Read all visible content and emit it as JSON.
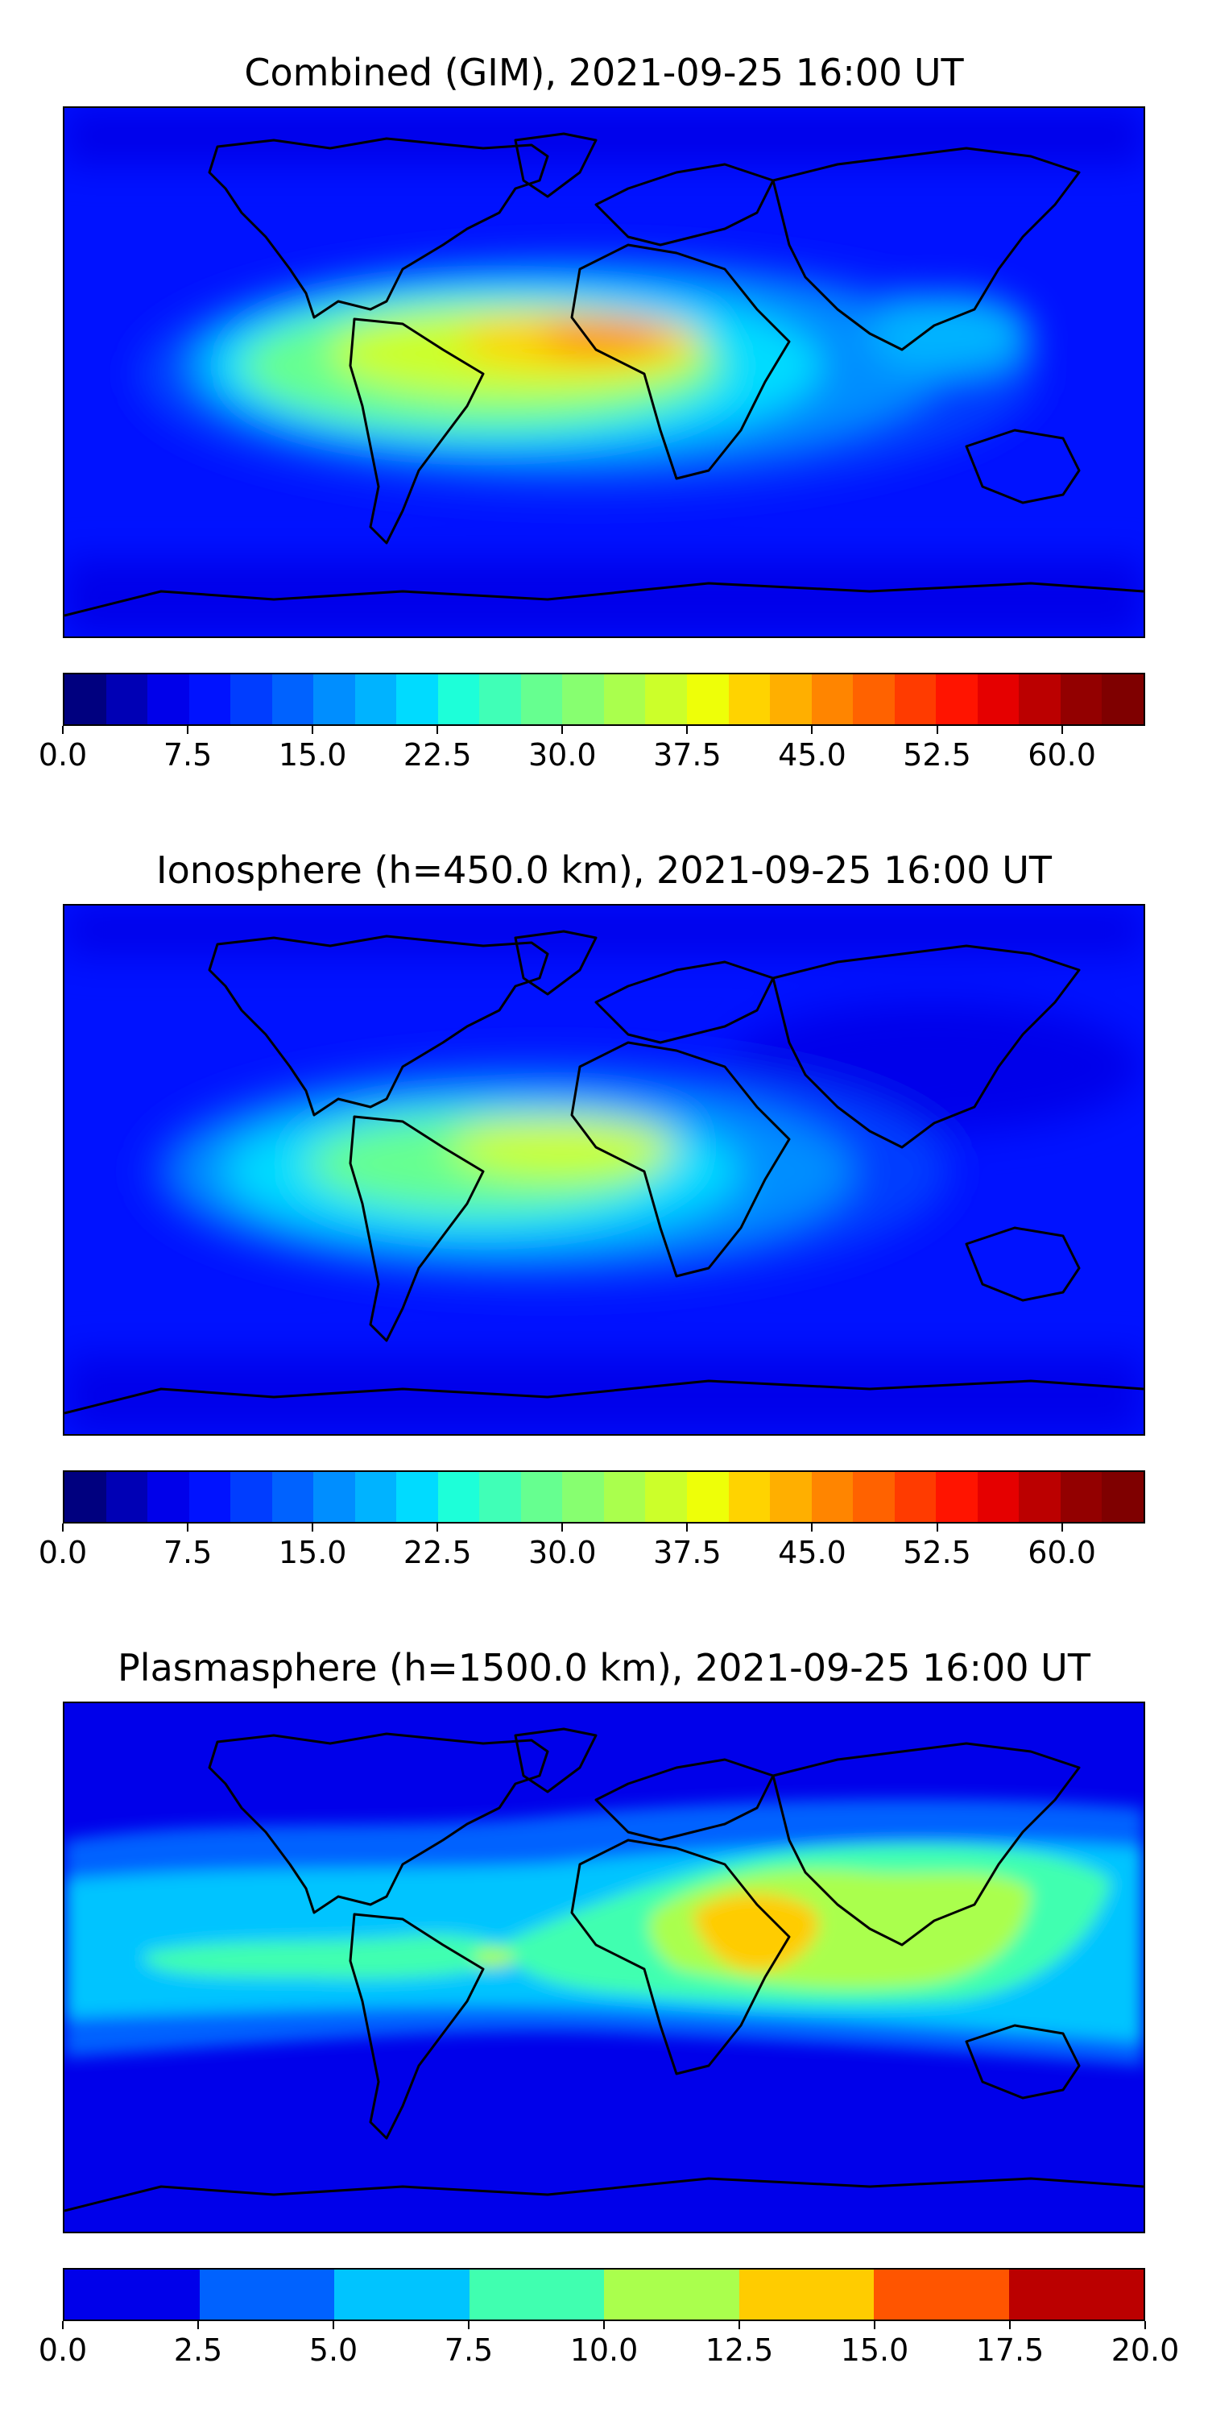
{
  "panels": [
    {
      "title": "Combined (GIM), 2021-09-25 16:00 UT",
      "colorbar": {
        "min": 0.0,
        "max": 65.0,
        "levels": 26,
        "colors": [
          "#00007f",
          "#0000b5",
          "#0000ea",
          "#0012ff",
          "#003dff",
          "#0062ff",
          "#008eff",
          "#00b3ff",
          "#00dbff",
          "#1dffd9",
          "#40ffb7",
          "#66ff90",
          "#87ff70",
          "#aaff4d",
          "#ccff2a",
          "#eeff08",
          "#ffd300",
          "#ffaf00",
          "#ff8500",
          "#ff6200",
          "#ff3b00",
          "#ff1400",
          "#e50000",
          "#bb0000",
          "#930000",
          "#7f0000"
        ],
        "tick_values": [
          0.0,
          7.5,
          15.0,
          22.5,
          30.0,
          37.5,
          45.0,
          52.5,
          60.0
        ],
        "tick_labels": [
          "0.0",
          "7.5",
          "15.0",
          "22.5",
          "30.0",
          "37.5",
          "45.0",
          "52.5",
          "60.0"
        ]
      }
    },
    {
      "title": "Ionosphere  (h=450.0 km), 2021-09-25 16:00 UT",
      "colorbar": {
        "min": 0.0,
        "max": 65.0,
        "levels": 26,
        "colors": [
          "#00007f",
          "#0000b5",
          "#0000ea",
          "#0012ff",
          "#003dff",
          "#0062ff",
          "#008eff",
          "#00b3ff",
          "#00dbff",
          "#1dffd9",
          "#40ffb7",
          "#66ff90",
          "#87ff70",
          "#aaff4d",
          "#ccff2a",
          "#eeff08",
          "#ffd300",
          "#ffaf00",
          "#ff8500",
          "#ff6200",
          "#ff3b00",
          "#ff1400",
          "#e50000",
          "#bb0000",
          "#930000",
          "#7f0000"
        ],
        "tick_values": [
          0.0,
          7.5,
          15.0,
          22.5,
          30.0,
          37.5,
          45.0,
          52.5,
          60.0
        ],
        "tick_labels": [
          "0.0",
          "7.5",
          "15.0",
          "22.5",
          "30.0",
          "37.5",
          "45.0",
          "52.5",
          "60.0"
        ]
      }
    },
    {
      "title": "Plasmasphere (h=1500.0 km), 2021-09-25 16:00 UT",
      "colorbar": {
        "min": 0.0,
        "max": 20.0,
        "levels": 8,
        "colors": [
          "#0000ea",
          "#0062ff",
          "#00c4ff",
          "#40ffb0",
          "#aaff4d",
          "#ffcc00",
          "#ff5500",
          "#bb0000"
        ],
        "tick_values": [
          0.0,
          2.5,
          5.0,
          7.5,
          10.0,
          12.5,
          15.0,
          17.5,
          20.0
        ],
        "tick_labels": [
          "0.0",
          "2.5",
          "5.0",
          "7.5",
          "10.0",
          "12.5",
          "15.0",
          "17.5",
          "20.0"
        ]
      }
    }
  ]
}
